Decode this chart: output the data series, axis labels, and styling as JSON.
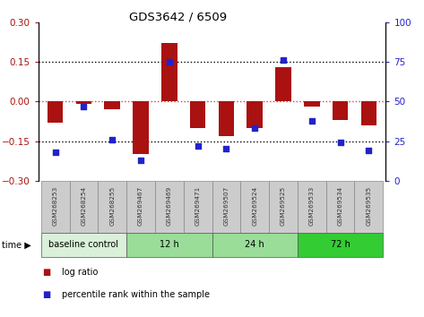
{
  "title": "GDS3642 / 6509",
  "samples": [
    "GSM268253",
    "GSM268254",
    "GSM268255",
    "GSM269467",
    "GSM269469",
    "GSM269471",
    "GSM269507",
    "GSM269524",
    "GSM269525",
    "GSM269533",
    "GSM269534",
    "GSM269535"
  ],
  "log_ratio": [
    -0.08,
    -0.01,
    -0.03,
    -0.2,
    0.22,
    -0.1,
    -0.13,
    -0.1,
    0.13,
    -0.02,
    -0.07,
    -0.09
  ],
  "percentile_rank": [
    18,
    47,
    26,
    13,
    75,
    22,
    20,
    33,
    76,
    38,
    24,
    19
  ],
  "bar_color": "#aa1111",
  "dot_color": "#2222cc",
  "ylim_left": [
    -0.3,
    0.3
  ],
  "ylim_right": [
    0,
    100
  ],
  "yticks_left": [
    -0.3,
    -0.15,
    0,
    0.15,
    0.3
  ],
  "yticks_right": [
    0,
    25,
    50,
    75,
    100
  ],
  "group_colors": [
    "#d9f0d9",
    "#99dd99",
    "#99dd99",
    "#33cc33"
  ],
  "group_labels": [
    "baseline control",
    "12 h",
    "24 h",
    "72 h"
  ],
  "group_starts": [
    0,
    3,
    6,
    9
  ],
  "group_ends": [
    3,
    6,
    9,
    12
  ],
  "legend_labels": [
    "log ratio",
    "percentile rank within the sample"
  ],
  "legend_colors": [
    "#aa1111",
    "#2222cc"
  ]
}
